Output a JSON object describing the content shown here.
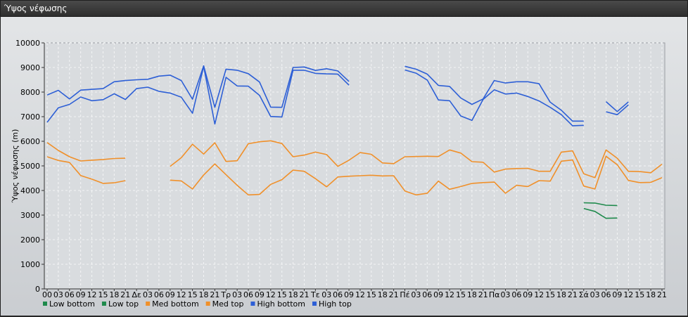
{
  "window": {
    "title": "Ύψος νέφωσης"
  },
  "chart_data": {
    "type": "line",
    "title": "Ύψος νέφωσης",
    "ylabel": "Ύψος νέφωσης (m)",
    "ylim": [
      0,
      10000
    ],
    "yticks": [
      "0",
      "1000",
      "2000",
      "3000",
      "4000",
      "5000",
      "6000",
      "7000",
      "8000",
      "9000",
      "10000"
    ],
    "xlabels": [
      "00",
      "03",
      "06",
      "09",
      "12",
      "15",
      "18",
      "21",
      "Δε",
      "03",
      "06",
      "09",
      "12",
      "15",
      "18",
      "21",
      "Τρ",
      "03",
      "06",
      "09",
      "12",
      "15",
      "18",
      "21",
      "Τε",
      "03",
      "06",
      "09",
      "12",
      "15",
      "18",
      "21",
      "Πέ",
      "03",
      "06",
      "09",
      "12",
      "15",
      "18",
      "21",
      "Πα",
      "03",
      "06",
      "09",
      "12",
      "15",
      "18",
      "21",
      "Σά",
      "03",
      "06",
      "09",
      "12",
      "15",
      "18",
      "21"
    ],
    "grid": true,
    "legend_position": "bottom-left",
    "series": [
      {
        "name": "Low bottom",
        "color": "#1f8a4c",
        "values": [
          null,
          null,
          null,
          null,
          null,
          null,
          null,
          null,
          null,
          null,
          null,
          null,
          null,
          null,
          null,
          null,
          null,
          null,
          null,
          null,
          null,
          null,
          null,
          null,
          null,
          null,
          null,
          null,
          null,
          null,
          null,
          null,
          null,
          null,
          null,
          null,
          null,
          null,
          null,
          null,
          null,
          null,
          null,
          null,
          null,
          null,
          null,
          null,
          3270,
          3150,
          2870,
          2880,
          null,
          null,
          null,
          null
        ]
      },
      {
        "name": "Low top",
        "color": "#1f8a4c",
        "values": [
          null,
          null,
          null,
          null,
          null,
          null,
          null,
          null,
          null,
          null,
          null,
          null,
          null,
          null,
          null,
          null,
          null,
          null,
          null,
          null,
          null,
          null,
          null,
          null,
          null,
          null,
          null,
          null,
          null,
          null,
          null,
          null,
          null,
          null,
          null,
          null,
          null,
          null,
          null,
          null,
          null,
          null,
          null,
          null,
          null,
          null,
          null,
          null,
          3500,
          3490,
          3400,
          3390,
          null,
          null,
          null,
          null
        ]
      },
      {
        "name": "Med bottom",
        "color": "#f0902a",
        "values": [
          5370,
          5220,
          5140,
          4610,
          4460,
          4290,
          4310,
          4400,
          null,
          null,
          null,
          4420,
          4390,
          4060,
          4630,
          5080,
          4640,
          4210,
          3820,
          3840,
          4250,
          4440,
          4830,
          4780,
          4480,
          4150,
          4550,
          4580,
          4600,
          4620,
          4590,
          4600,
          3980,
          3820,
          3890,
          4380,
          4050,
          4160,
          4290,
          4320,
          4340,
          3890,
          4210,
          4160,
          4400,
          4380,
          5190,
          5240,
          4180,
          4060,
          5390,
          5050,
          4410,
          4320,
          4330,
          4520
        ]
      },
      {
        "name": "Med top",
        "color": "#f0902a",
        "values": [
          5950,
          5630,
          5370,
          5200,
          5230,
          5260,
          5300,
          5310,
          null,
          null,
          null,
          4980,
          5330,
          5880,
          5480,
          5940,
          5180,
          5210,
          5900,
          5980,
          6020,
          5910,
          5370,
          5440,
          5560,
          5460,
          4980,
          5230,
          5540,
          5470,
          5120,
          5090,
          5370,
          5380,
          5390,
          5380,
          5650,
          5520,
          5170,
          5150,
          4750,
          4870,
          4890,
          4900,
          4780,
          4780,
          5560,
          5610,
          4680,
          4520,
          5650,
          5310,
          4780,
          4770,
          4720,
          5070
        ]
      },
      {
        "name": "High bottom",
        "color": "#2d5fd6",
        "values": [
          6770,
          7360,
          7500,
          7800,
          7650,
          7690,
          7930,
          7700,
          8140,
          8200,
          8030,
          7960,
          7790,
          7140,
          9040,
          6700,
          8600,
          8250,
          8240,
          7870,
          7010,
          6990,
          8890,
          8890,
          8760,
          8740,
          8730,
          8280,
          null,
          null,
          null,
          null,
          8900,
          8770,
          8490,
          7680,
          7650,
          7030,
          6850,
          7700,
          8090,
          7920,
          7960,
          7820,
          7640,
          7380,
          7080,
          6630,
          6650,
          null,
          7200,
          7080,
          7480,
          null,
          null,
          null
        ]
      },
      {
        "name": "High top",
        "color": "#2d5fd6",
        "values": [
          7880,
          8070,
          7720,
          8080,
          8110,
          8140,
          8420,
          8470,
          8500,
          8520,
          8650,
          8690,
          8470,
          7710,
          9070,
          7380,
          8930,
          8890,
          8750,
          8410,
          7390,
          7380,
          9000,
          9020,
          8880,
          8950,
          8860,
          8430,
          null,
          null,
          null,
          null,
          9050,
          8930,
          8730,
          8270,
          8230,
          7760,
          7500,
          7720,
          8470,
          8370,
          8420,
          8420,
          8340,
          7590,
          7260,
          6820,
          6820,
          null,
          7610,
          7210,
          7600,
          null,
          null,
          null
        ]
      }
    ]
  }
}
